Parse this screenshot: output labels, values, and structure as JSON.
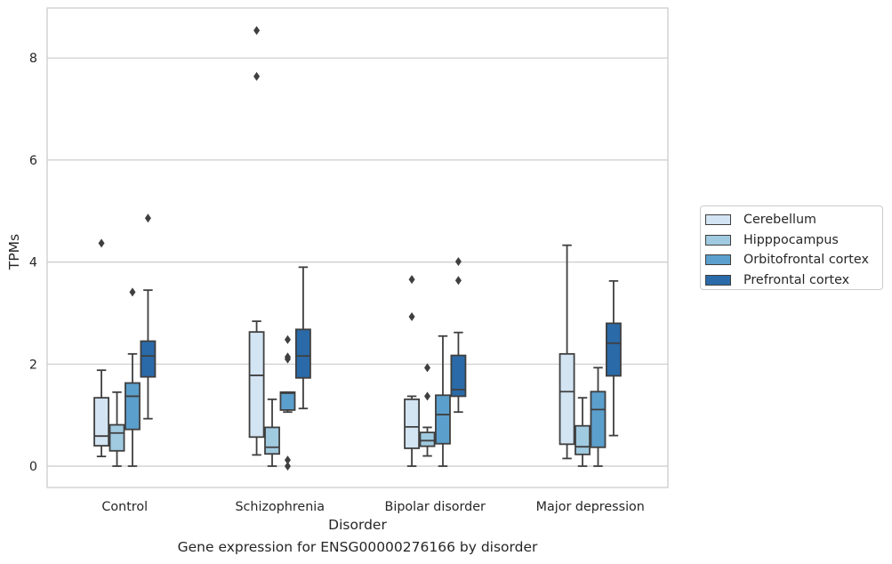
{
  "chart_data": {
    "type": "box",
    "caption": "Gene expression for ENSG00000276166 by disorder",
    "xlabel": "Disorder",
    "ylabel": "TPMs",
    "ylim": [
      -0.4,
      8.95
    ],
    "yticks": [
      0,
      2,
      4,
      6,
      8
    ],
    "grid": "horizontal",
    "legend_position": "right",
    "categories": [
      "Control",
      "Schizophrenia",
      "Bipolar disorder",
      "Major depression"
    ],
    "series": [
      {
        "name": "Cerebellum",
        "color": "#d3e4f3",
        "boxes": [
          {
            "whisker_low": 0.19,
            "q1": 0.4,
            "median": 0.59,
            "q3": 1.34,
            "whisker_high": 1.88,
            "outliers": [
              4.37
            ]
          },
          {
            "whisker_low": 0.22,
            "q1": 0.57,
            "median": 1.78,
            "q3": 2.63,
            "whisker_high": 2.84,
            "outliers": [
              7.64,
              8.54
            ]
          },
          {
            "whisker_low": 0.0,
            "q1": 0.35,
            "median": 0.77,
            "q3": 1.31,
            "whisker_high": 1.37,
            "outliers": [
              2.93,
              3.66
            ]
          },
          {
            "whisker_low": 0.15,
            "q1": 0.43,
            "median": 1.46,
            "q3": 2.2,
            "whisker_high": 4.33,
            "outliers": []
          }
        ]
      },
      {
        "name": "Hipppocampus",
        "color": "#a0cae0",
        "boxes": [
          {
            "whisker_low": 0.0,
            "q1": 0.3,
            "median": 0.65,
            "q3": 0.81,
            "whisker_high": 1.45,
            "outliers": []
          },
          {
            "whisker_low": 0.0,
            "q1": 0.24,
            "median": 0.37,
            "q3": 0.76,
            "whisker_high": 1.31,
            "outliers": []
          },
          {
            "whisker_low": 0.2,
            "q1": 0.39,
            "median": 0.5,
            "q3": 0.66,
            "whisker_high": 0.76,
            "outliers": [
              1.37,
              1.93
            ]
          },
          {
            "whisker_low": 0.0,
            "q1": 0.23,
            "median": 0.38,
            "q3": 0.79,
            "whisker_high": 1.34,
            "outliers": []
          }
        ]
      },
      {
        "name": "Orbitofrontal cortex",
        "color": "#5b9fcc",
        "boxes": [
          {
            "whisker_low": 0.0,
            "q1": 0.72,
            "median": 1.37,
            "q3": 1.63,
            "whisker_high": 2.2,
            "outliers": [
              3.41
            ]
          },
          {
            "whisker_low": 1.06,
            "q1": 1.1,
            "median": 1.43,
            "q3": 1.45,
            "whisker_high": 1.45,
            "outliers": [
              0.0,
              0.12,
              2.1,
              2.14,
              2.48
            ]
          },
          {
            "whisker_low": 0.0,
            "q1": 0.44,
            "median": 1.01,
            "q3": 1.39,
            "whisker_high": 2.55,
            "outliers": []
          },
          {
            "whisker_low": 0.0,
            "q1": 0.37,
            "median": 1.11,
            "q3": 1.46,
            "whisker_high": 1.93,
            "outliers": []
          }
        ]
      },
      {
        "name": "Prefrontal cortex",
        "color": "#2a6aa8",
        "boxes": [
          {
            "whisker_low": 0.93,
            "q1": 1.75,
            "median": 2.16,
            "q3": 2.45,
            "whisker_high": 3.45,
            "outliers": [
              4.86
            ]
          },
          {
            "whisker_low": 1.13,
            "q1": 1.73,
            "median": 2.16,
            "q3": 2.68,
            "whisker_high": 3.9,
            "outliers": []
          },
          {
            "whisker_low": 1.06,
            "q1": 1.37,
            "median": 1.5,
            "q3": 2.17,
            "whisker_high": 2.62,
            "outliers": [
              3.64,
              4.01
            ]
          },
          {
            "whisker_low": 0.6,
            "q1": 1.77,
            "median": 2.41,
            "q3": 2.8,
            "whisker_high": 3.63,
            "outliers": []
          }
        ]
      }
    ]
  }
}
